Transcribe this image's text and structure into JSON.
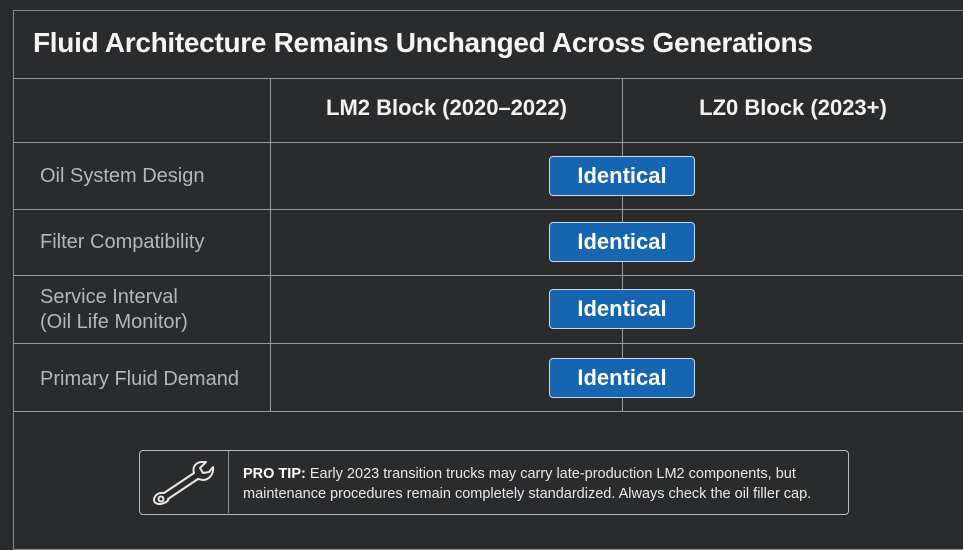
{
  "title": "Fluid Architecture Remains Unchanged Across Generations",
  "columns": {
    "col1": "LM2 Block (2020–2022)",
    "col2": "LZ0 Block (2023+)"
  },
  "rows": [
    {
      "label": "Oil System Design",
      "value": "Identical"
    },
    {
      "label": "Filter Compatibility",
      "value": "Identical"
    },
    {
      "label": "Service Interval\n(Oil Life Monitor)",
      "value": "Identical"
    },
    {
      "label": "Primary Fluid Demand",
      "value": "Identical"
    }
  ],
  "tip": {
    "icon": "wrench-icon",
    "prefix": "PRO TIP:",
    "text": " Early 2023 transition trucks may carry late-production LM2 components, but maintenance procedures remain completely standardized. Always check the oil filler cap."
  },
  "colors": {
    "background": "#2a2b2d",
    "badge": "#1565b0",
    "gridline": "#9a9ca0"
  }
}
